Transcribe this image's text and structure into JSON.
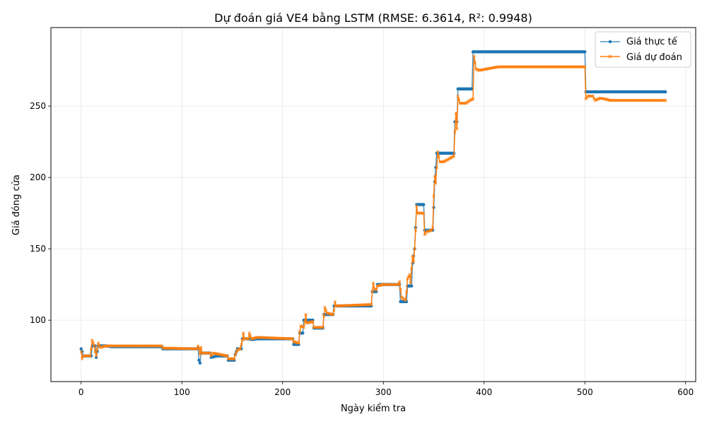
{
  "chart_data": {
    "type": "line",
    "title": "Dự đoán giá VE4 bằng LSTM (RMSE: 6.3614, R²: 0.9948)",
    "xlabel": "Ngày kiểm tra",
    "ylabel": "Giá đóng cửa",
    "xlim": [
      -30,
      610
    ],
    "ylim": [
      57,
      305
    ],
    "xticks": [
      0,
      100,
      200,
      300,
      400,
      500,
      600
    ],
    "yticks": [
      100,
      150,
      200,
      250
    ],
    "grid": true,
    "legend_position": "top-right",
    "series": [
      {
        "name": "Giá thực tế",
        "color": "#1f77b4",
        "marker": "circle",
        "points": [
          [
            0,
            80
          ],
          [
            1,
            78
          ],
          [
            2,
            75
          ],
          [
            10,
            75
          ],
          [
            11,
            82
          ],
          [
            14,
            82
          ],
          [
            15,
            74
          ],
          [
            17,
            82
          ],
          [
            25,
            82
          ],
          [
            30,
            81.5
          ],
          [
            80,
            81.5
          ],
          [
            81,
            80
          ],
          [
            115,
            80
          ],
          [
            116,
            81
          ],
          [
            117,
            72
          ],
          [
            118,
            70
          ],
          [
            119,
            77
          ],
          [
            128,
            77
          ],
          [
            129,
            74
          ],
          [
            135,
            75
          ],
          [
            145,
            75
          ],
          [
            146,
            72
          ],
          [
            152,
            72
          ],
          [
            153,
            76
          ],
          [
            155,
            80
          ],
          [
            159,
            80
          ],
          [
            160,
            87
          ],
          [
            165,
            87
          ],
          [
            166,
            87
          ],
          [
            170,
            86.5
          ],
          [
            175,
            87
          ],
          [
            210,
            87
          ],
          [
            211,
            83
          ],
          [
            216,
            83
          ],
          [
            217,
            91
          ],
          [
            220,
            91
          ],
          [
            221,
            100
          ],
          [
            230,
            100
          ],
          [
            231,
            94.5
          ],
          [
            240,
            94.5
          ],
          [
            241,
            104
          ],
          [
            250,
            104
          ],
          [
            251,
            110
          ],
          [
            288,
            110
          ],
          [
            289,
            120
          ],
          [
            293,
            120
          ],
          [
            294,
            125
          ],
          [
            316,
            125
          ],
          [
            317,
            113
          ],
          [
            323,
            113
          ],
          [
            324,
            124
          ],
          [
            328,
            124
          ],
          [
            329,
            140
          ],
          [
            331,
            150
          ],
          [
            332,
            165
          ],
          [
            333,
            181
          ],
          [
            340,
            181
          ],
          [
            341,
            163
          ],
          [
            349,
            163
          ],
          [
            350,
            179
          ],
          [
            351,
            197
          ],
          [
            353,
            217
          ],
          [
            370,
            217
          ],
          [
            371,
            239
          ],
          [
            373,
            239
          ],
          [
            374,
            262
          ],
          [
            388,
            262
          ],
          [
            389,
            288
          ],
          [
            500,
            288
          ],
          [
            501,
            260
          ],
          [
            580,
            260
          ]
        ]
      },
      {
        "name": "Giá dự đoán",
        "color": "#ff7f0e",
        "marker": "x",
        "points": [
          [
            0,
            78
          ],
          [
            1,
            73
          ],
          [
            2,
            75
          ],
          [
            9,
            75
          ],
          [
            10,
            80
          ],
          [
            11,
            86
          ],
          [
            13,
            82
          ],
          [
            14,
            78
          ],
          [
            15,
            75
          ],
          [
            16,
            80
          ],
          [
            17,
            84
          ],
          [
            19,
            81
          ],
          [
            25,
            82
          ],
          [
            30,
            82
          ],
          [
            80,
            82
          ],
          [
            81,
            80.5
          ],
          [
            115,
            80
          ],
          [
            116,
            82
          ],
          [
            117,
            80
          ],
          [
            118,
            76
          ],
          [
            119,
            81
          ],
          [
            120,
            77
          ],
          [
            128,
            77
          ],
          [
            129,
            75
          ],
          [
            131,
            77
          ],
          [
            145,
            75
          ],
          [
            146,
            73
          ],
          [
            152,
            73
          ],
          [
            153,
            76
          ],
          [
            155,
            79
          ],
          [
            158,
            80
          ],
          [
            160,
            86
          ],
          [
            161,
            91
          ],
          [
            162,
            87
          ],
          [
            166,
            87
          ],
          [
            167,
            91
          ],
          [
            169,
            87
          ],
          [
            175,
            88
          ],
          [
            210,
            87
          ],
          [
            211,
            85
          ],
          [
            216,
            84
          ],
          [
            217,
            92
          ],
          [
            218,
            96
          ],
          [
            221,
            95
          ],
          [
            222,
            99
          ],
          [
            223,
            104
          ],
          [
            224,
            98
          ],
          [
            230,
            99
          ],
          [
            231,
            95
          ],
          [
            240,
            95
          ],
          [
            241,
            103
          ],
          [
            242,
            109
          ],
          [
            244,
            105
          ],
          [
            250,
            104
          ],
          [
            251,
            107
          ],
          [
            252,
            113
          ],
          [
            253,
            110
          ],
          [
            288,
            111
          ],
          [
            289,
            120
          ],
          [
            290,
            126
          ],
          [
            291,
            122
          ],
          [
            293,
            121
          ],
          [
            294,
            124
          ],
          [
            300,
            125
          ],
          [
            315,
            125
          ],
          [
            316,
            127
          ],
          [
            318,
            116
          ],
          [
            322,
            114
          ],
          [
            323,
            120
          ],
          [
            324,
            129
          ],
          [
            326,
            132
          ],
          [
            327,
            126
          ],
          [
            328,
            136
          ],
          [
            329,
            145
          ],
          [
            330,
            141
          ],
          [
            331,
            150
          ],
          [
            332,
            163
          ],
          [
            333,
            180
          ],
          [
            334,
            175
          ],
          [
            340,
            175
          ],
          [
            341,
            160
          ],
          [
            343,
            162
          ],
          [
            348,
            163
          ],
          [
            349,
            165
          ],
          [
            350,
            187
          ],
          [
            351,
            201
          ],
          [
            352,
            196
          ],
          [
            354,
            218
          ],
          [
            356,
            211
          ],
          [
            360,
            211
          ],
          [
            370,
            215
          ],
          [
            371,
            232
          ],
          [
            372,
            245
          ],
          [
            373,
            234
          ],
          [
            374,
            257
          ],
          [
            376,
            252
          ],
          [
            382,
            252
          ],
          [
            386,
            254
          ],
          [
            389,
            255
          ],
          [
            390,
            285
          ],
          [
            392,
            276
          ],
          [
            395,
            275
          ],
          [
            410,
            277
          ],
          [
            415,
            277.5
          ],
          [
            500,
            277.5
          ],
          [
            501,
            255
          ],
          [
            503,
            257
          ],
          [
            508,
            257
          ],
          [
            510,
            254
          ],
          [
            515,
            255.5
          ],
          [
            520,
            255
          ],
          [
            525,
            254
          ],
          [
            580,
            254
          ]
        ]
      }
    ]
  }
}
